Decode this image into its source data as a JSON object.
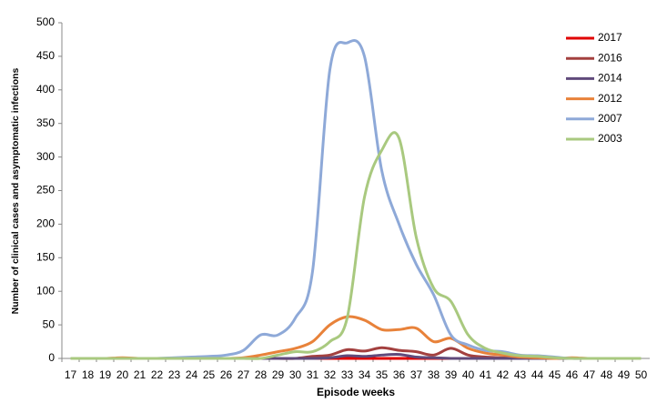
{
  "chart_data": {
    "type": "line",
    "x_label": "Episode weeks",
    "y_label": "Number of clinical cases and asymptomatic infections",
    "categories": [
      "17",
      "18",
      "19",
      "20",
      "21",
      "22",
      "23",
      "24",
      "25",
      "26",
      "27",
      "28",
      "29",
      "30",
      "31",
      "32",
      "33",
      "34",
      "35",
      "36",
      "37",
      "38",
      "39",
      "40",
      "41",
      "42",
      "43",
      "44",
      "45",
      "46",
      "47",
      "48",
      "49",
      "50"
    ],
    "ylim": [
      0,
      500
    ],
    "yticks": [
      0,
      50,
      100,
      150,
      200,
      250,
      300,
      350,
      400,
      450,
      500
    ],
    "legend": "top-right",
    "series": [
      {
        "name": "2017",
        "color": "#e00000",
        "values": [
          0,
          0,
          0,
          0,
          0,
          0,
          0,
          0,
          0,
          0,
          0,
          0,
          0,
          0,
          0,
          0,
          0,
          0,
          0,
          0,
          0,
          0,
          0,
          0,
          0,
          0,
          0,
          0,
          0,
          0,
          0,
          0,
          0,
          0
        ]
      },
      {
        "name": "2016",
        "color": "#a3403f",
        "values": [
          0,
          0,
          0,
          0,
          0,
          0,
          0,
          0,
          0,
          0,
          0,
          0,
          0,
          0,
          3,
          5,
          13,
          11,
          16,
          12,
          10,
          5,
          15,
          5,
          2,
          1,
          0,
          0,
          0,
          0,
          0,
          0,
          0,
          0
        ]
      },
      {
        "name": "2014",
        "color": "#604a7b",
        "values": [
          0,
          0,
          0,
          0,
          0,
          0,
          0,
          0,
          0,
          0,
          0,
          0,
          0,
          0,
          0,
          1,
          4,
          3,
          5,
          6,
          2,
          1,
          0,
          0,
          0,
          0,
          0,
          0,
          0,
          0,
          0,
          0,
          0,
          0
        ]
      },
      {
        "name": "2012",
        "color": "#e8823a",
        "values": [
          0,
          0,
          0,
          1,
          0,
          0,
          0,
          0,
          0,
          0,
          1,
          5,
          10,
          15,
          25,
          50,
          62,
          57,
          43,
          43,
          45,
          25,
          30,
          15,
          8,
          5,
          2,
          1,
          0,
          1,
          0,
          0,
          0,
          0
        ]
      },
      {
        "name": "2007",
        "color": "#8ea9d8",
        "values": [
          0,
          0,
          0,
          0,
          0,
          0,
          1,
          2,
          3,
          5,
          12,
          35,
          35,
          60,
          130,
          430,
          470,
          450,
          280,
          200,
          140,
          95,
          35,
          20,
          12,
          10,
          5,
          4,
          2,
          0,
          0,
          0,
          0,
          0
        ]
      },
      {
        "name": "2003",
        "color": "#a9c97f",
        "values": [
          0,
          0,
          0,
          0,
          0,
          0,
          0,
          0,
          0,
          0,
          0,
          0,
          5,
          10,
          10,
          25,
          60,
          240,
          310,
          328,
          180,
          105,
          85,
          35,
          15,
          8,
          4,
          3,
          1,
          0,
          0,
          0,
          0,
          0
        ]
      }
    ]
  }
}
